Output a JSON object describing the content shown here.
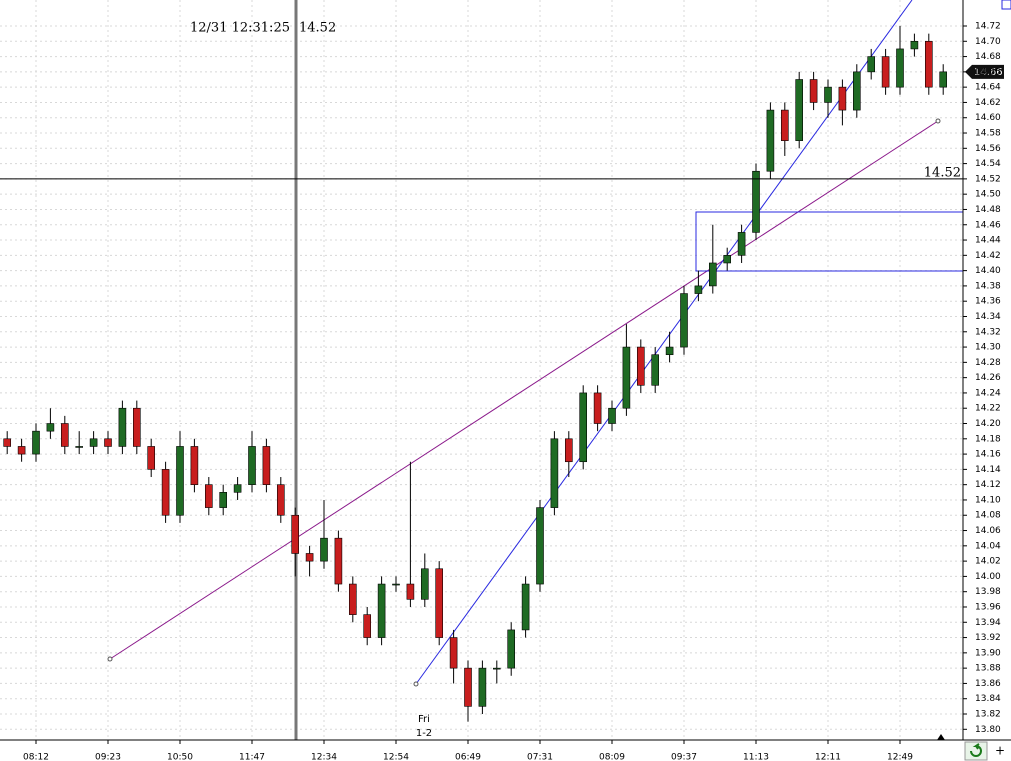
{
  "chart_data": {
    "type": "candlestick",
    "crosshair_time": "12/31 12:31:25",
    "crosshair_value": 14.52,
    "last_price": 14.66,
    "annotation": "Fri",
    "annotation_date": "1-2",
    "categories": [
      null,
      null,
      "08:12",
      null,
      null,
      null,
      null,
      "09:23",
      null,
      null,
      null,
      null,
      "10:50",
      null,
      null,
      null,
      null,
      "11:47",
      null,
      null,
      null,
      null,
      "12:34",
      null,
      null,
      null,
      null,
      "12:54",
      null,
      null,
      null,
      null,
      "06:49",
      null,
      null,
      null,
      null,
      "07:31",
      null,
      null,
      null,
      null,
      "08:09",
      null,
      null,
      null,
      null,
      "09:37",
      null,
      null,
      null,
      null,
      "11:13",
      null,
      null,
      null,
      null,
      "12:11",
      null,
      null,
      null,
      null,
      "12:49",
      null,
      null,
      null
    ],
    "open": [
      14.18,
      14.17,
      14.16,
      14.19,
      14.2,
      14.17,
      14.17,
      14.18,
      14.17,
      14.22,
      14.17,
      14.14,
      14.08,
      14.17,
      14.12,
      14.09,
      14.11,
      14.12,
      14.17,
      14.12,
      14.08,
      14.03,
      14.02,
      14.05,
      13.99,
      13.95,
      13.92,
      13.99,
      13.99,
      13.97,
      14.01,
      13.92,
      13.88,
      13.83,
      13.88,
      13.88,
      13.93,
      13.99,
      14.09,
      14.18,
      14.15,
      14.24,
      14.2,
      14.22,
      14.3,
      14.25,
      14.29,
      14.3,
      14.37,
      14.38,
      14.41,
      14.42,
      14.45,
      14.53,
      14.61,
      14.57,
      14.65,
      14.62,
      14.64,
      14.61,
      14.66,
      14.68,
      14.64,
      14.69,
      14.7,
      14.64
    ],
    "high": [
      14.19,
      14.18,
      14.2,
      14.22,
      14.21,
      14.19,
      14.19,
      14.19,
      14.23,
      14.23,
      14.18,
      14.15,
      14.19,
      14.18,
      14.13,
      14.12,
      14.13,
      14.19,
      14.18,
      14.13,
      14.09,
      14.04,
      14.1,
      14.06,
      14.0,
      13.96,
      14.0,
      14.0,
      14.15,
      14.03,
      14.02,
      13.93,
      13.89,
      13.89,
      13.89,
      13.94,
      14.0,
      14.1,
      14.19,
      14.19,
      14.25,
      14.25,
      14.23,
      14.33,
      14.31,
      14.3,
      14.32,
      14.38,
      14.4,
      14.46,
      14.43,
      14.46,
      14.54,
      14.62,
      14.62,
      14.66,
      14.66,
      14.65,
      14.65,
      14.67,
      14.69,
      14.69,
      14.72,
      14.71,
      14.71,
      14.67
    ],
    "low": [
      14.16,
      14.15,
      14.15,
      14.18,
      14.16,
      14.16,
      14.16,
      14.16,
      14.16,
      14.16,
      14.13,
      14.07,
      14.07,
      14.11,
      14.08,
      14.08,
      14.1,
      14.11,
      14.11,
      14.07,
      14.0,
      14.0,
      14.01,
      13.98,
      13.94,
      13.91,
      13.91,
      13.98,
      13.96,
      13.96,
      13.91,
      13.86,
      13.81,
      13.82,
      13.86,
      13.87,
      13.92,
      13.98,
      14.08,
      14.13,
      14.14,
      14.19,
      14.19,
      14.21,
      14.24,
      14.24,
      14.28,
      14.29,
      14.36,
      14.37,
      14.4,
      14.41,
      14.44,
      14.52,
      14.55,
      14.56,
      14.61,
      14.6,
      14.59,
      14.6,
      14.65,
      14.63,
      14.63,
      14.68,
      14.63,
      14.63
    ],
    "close": [
      14.17,
      14.16,
      14.19,
      14.2,
      14.17,
      14.17,
      14.18,
      14.17,
      14.22,
      14.17,
      14.14,
      14.08,
      14.17,
      14.12,
      14.09,
      14.11,
      14.12,
      14.17,
      14.12,
      14.08,
      14.03,
      14.02,
      14.05,
      13.99,
      13.95,
      13.92,
      13.99,
      13.99,
      13.97,
      14.01,
      13.92,
      13.88,
      13.83,
      13.88,
      13.88,
      13.93,
      13.99,
      14.09,
      14.18,
      14.15,
      14.24,
      14.2,
      14.22,
      14.3,
      14.25,
      14.29,
      14.3,
      14.37,
      14.38,
      14.41,
      14.42,
      14.45,
      14.53,
      14.61,
      14.57,
      14.65,
      14.62,
      14.64,
      14.61,
      14.66,
      14.68,
      14.64,
      14.69,
      14.7,
      14.64,
      14.66
    ],
    "up_color": "#1f6b24",
    "down_color": "#c81e1e",
    "ylim": [
      13.786,
      14.754
    ],
    "yticks": [
      {
        "value": 13.8,
        "label": "13.80"
      },
      13.82,
      13.84,
      13.86,
      13.88,
      {
        "value": 13.9,
        "label": "13.90"
      },
      13.92,
      13.94,
      13.96,
      13.98,
      {
        "value": 14.0,
        "label": "14.00"
      },
      14.02,
      14.04,
      14.06,
      14.08,
      {
        "value": 14.1,
        "label": "14.10"
      },
      14.12,
      14.14,
      14.16,
      14.18,
      {
        "value": 14.2,
        "label": "14.20"
      },
      14.22,
      14.24,
      14.26,
      14.28,
      {
        "value": 14.3,
        "label": "14.30"
      },
      14.32,
      14.34,
      14.36,
      14.38,
      {
        "value": 14.4,
        "label": "14.40"
      },
      14.42,
      14.44,
      14.46,
      14.48,
      {
        "value": 14.5,
        "label": "14.50"
      },
      14.52,
      14.54,
      14.56,
      14.58,
      {
        "value": 14.6,
        "label": "14.60"
      },
      14.62,
      14.64,
      14.66,
      14.68,
      {
        "value": 14.7,
        "label": "14.70"
      },
      14.72
    ],
    "grid": true
  }
}
